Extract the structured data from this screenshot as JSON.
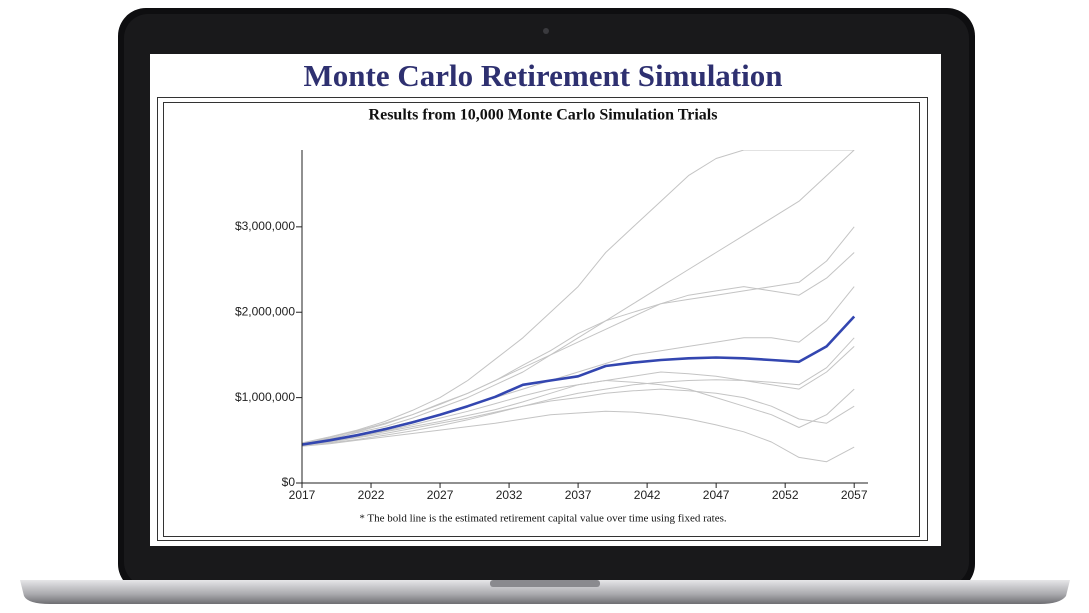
{
  "header": {
    "title": "Monte Carlo Retirement Simulation"
  },
  "chart_data": {
    "type": "line",
    "title": "Results from 10,000 Monte Carlo Simulation Trials",
    "footnote": "* The bold line is the estimated retirement capital value over time using fixed rates.",
    "x": [
      2017,
      2019,
      2021,
      2023,
      2025,
      2027,
      2029,
      2031,
      2033,
      2035,
      2037,
      2039,
      2041,
      2043,
      2045,
      2047,
      2049,
      2051,
      2053,
      2055,
      2057
    ],
    "xlim": [
      2017,
      2058
    ],
    "xticks": [
      2017,
      2022,
      2027,
      2032,
      2037,
      2042,
      2047,
      2052,
      2057
    ],
    "ylim": [
      0,
      3900000
    ],
    "yticks": [
      {
        "value": 0,
        "label": "$0"
      },
      {
        "value": 1000000,
        "label": "$1,000,000"
      },
      {
        "value": 2000000,
        "label": "$2,000,000"
      },
      {
        "value": 3000000,
        "label": "$3,000,000"
      }
    ],
    "series": [
      {
        "color": "#c4c4c4",
        "values": [
          450000,
          510000,
          600000,
          690000,
          800000,
          930000,
          1050000,
          1200000,
          1350000,
          1500000,
          1700000,
          1900000,
          2100000,
          2300000,
          2500000,
          2700000,
          2900000,
          3100000,
          3300000,
          3600000,
          3900000
        ]
      },
      {
        "color": "#c4c4c4",
        "values": [
          440000,
          480000,
          530000,
          580000,
          640000,
          700000,
          760000,
          830000,
          900000,
          960000,
          1000000,
          1050000,
          1080000,
          1100000,
          1080000,
          1050000,
          1000000,
          900000,
          750000,
          700000,
          900000
        ]
      },
      {
        "color": "#c4c4c4",
        "values": [
          460000,
          520000,
          590000,
          660000,
          760000,
          880000,
          1000000,
          1150000,
          1300000,
          1500000,
          1650000,
          1800000,
          1950000,
          2100000,
          2150000,
          2200000,
          2250000,
          2300000,
          2350000,
          2600000,
          3000000
        ]
      },
      {
        "color": "#c4c4c4",
        "values": [
          430000,
          460000,
          500000,
          540000,
          580000,
          620000,
          660000,
          700000,
          750000,
          800000,
          820000,
          840000,
          830000,
          800000,
          750000,
          680000,
          600000,
          480000,
          300000,
          250000,
          420000
        ]
      },
      {
        "color": "#c4c4c4",
        "values": [
          450000,
          500000,
          560000,
          640000,
          720000,
          800000,
          900000,
          1000000,
          1100000,
          1200000,
          1300000,
          1400000,
          1500000,
          1550000,
          1600000,
          1650000,
          1700000,
          1700000,
          1650000,
          1900000,
          2300000
        ]
      },
      {
        "color": "#c4c4c4",
        "values": [
          470000,
          540000,
          620000,
          720000,
          850000,
          1000000,
          1200000,
          1450000,
          1700000,
          2000000,
          2300000,
          2700000,
          3000000,
          3300000,
          3600000,
          3800000,
          3900000,
          3900000,
          3900000,
          3900000,
          3900000
        ]
      },
      {
        "color": "#c4c4c4",
        "values": [
          440000,
          490000,
          540000,
          600000,
          660000,
          720000,
          790000,
          860000,
          950000,
          1050000,
          1150000,
          1200000,
          1250000,
          1300000,
          1280000,
          1250000,
          1200000,
          1150000,
          1100000,
          1300000,
          1600000
        ]
      },
      {
        "color": "#c4c4c4",
        "values": [
          450000,
          500000,
          550000,
          610000,
          680000,
          760000,
          840000,
          930000,
          1020000,
          1100000,
          1150000,
          1200000,
          1180000,
          1150000,
          1100000,
          1000000,
          900000,
          800000,
          650000,
          800000,
          1100000
        ]
      },
      {
        "color": "#c4c4c4",
        "values": [
          460000,
          530000,
          610000,
          700000,
          800000,
          920000,
          1050000,
          1200000,
          1380000,
          1550000,
          1750000,
          1900000,
          2000000,
          2100000,
          2200000,
          2250000,
          2300000,
          2250000,
          2200000,
          2400000,
          2700000
        ]
      },
      {
        "color": "#c4c4c4",
        "values": [
          440000,
          470000,
          510000,
          560000,
          610000,
          670000,
          740000,
          820000,
          900000,
          980000,
          1050000,
          1100000,
          1150000,
          1180000,
          1200000,
          1210000,
          1200000,
          1180000,
          1150000,
          1350000,
          1700000
        ]
      },
      {
        "color": "#3346b0",
        "bold": true,
        "values": [
          450000,
          500000,
          560000,
          630000,
          710000,
          800000,
          900000,
          1010000,
          1150000,
          1200000,
          1250000,
          1370000,
          1410000,
          1440000,
          1460000,
          1470000,
          1460000,
          1440000,
          1420000,
          1600000,
          1950000
        ]
      }
    ]
  }
}
